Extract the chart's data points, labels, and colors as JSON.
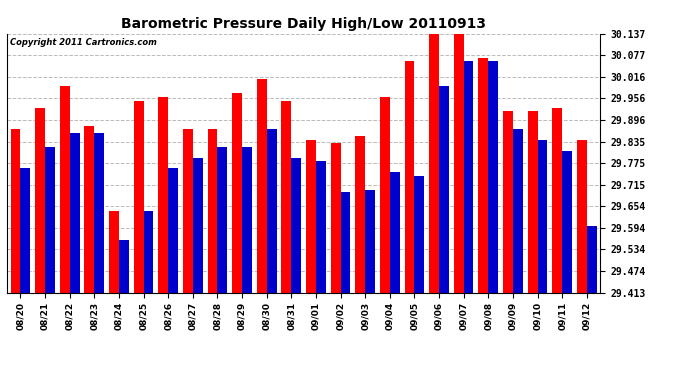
{
  "title": "Barometric Pressure Daily High/Low 20110913",
  "copyright": "Copyright 2011 Cartronics.com",
  "dates": [
    "08/20",
    "08/21",
    "08/22",
    "08/23",
    "08/24",
    "08/25",
    "08/26",
    "08/27",
    "08/28",
    "08/29",
    "08/30",
    "08/31",
    "09/01",
    "09/02",
    "09/03",
    "09/04",
    "09/05",
    "09/06",
    "09/07",
    "09/08",
    "09/09",
    "09/10",
    "09/11",
    "09/12"
  ],
  "highs": [
    29.87,
    29.93,
    29.99,
    29.88,
    29.64,
    29.95,
    29.96,
    29.87,
    29.87,
    29.97,
    30.01,
    29.95,
    29.84,
    29.83,
    29.85,
    29.96,
    30.06,
    30.137,
    30.137,
    30.07,
    29.92,
    29.92,
    29.93,
    29.84
  ],
  "lows": [
    29.76,
    29.82,
    29.86,
    29.86,
    29.56,
    29.64,
    29.76,
    29.79,
    29.82,
    29.82,
    29.87,
    29.79,
    29.78,
    29.695,
    29.7,
    29.75,
    29.74,
    29.99,
    30.06,
    30.06,
    29.87,
    29.84,
    29.81,
    29.6
  ],
  "yticks": [
    29.413,
    29.474,
    29.534,
    29.594,
    29.654,
    29.715,
    29.775,
    29.835,
    29.896,
    29.956,
    30.016,
    30.077,
    30.137
  ],
  "ymin": 29.413,
  "ymax": 30.137,
  "high_color": "#ff0000",
  "low_color": "#0000cc",
  "bg_color": "#ffffff",
  "grid_color": "#bbbbbb",
  "bar_width": 0.4,
  "title_fontsize": 10,
  "tick_fontsize": 7,
  "xlabel_fontsize": 6.5
}
